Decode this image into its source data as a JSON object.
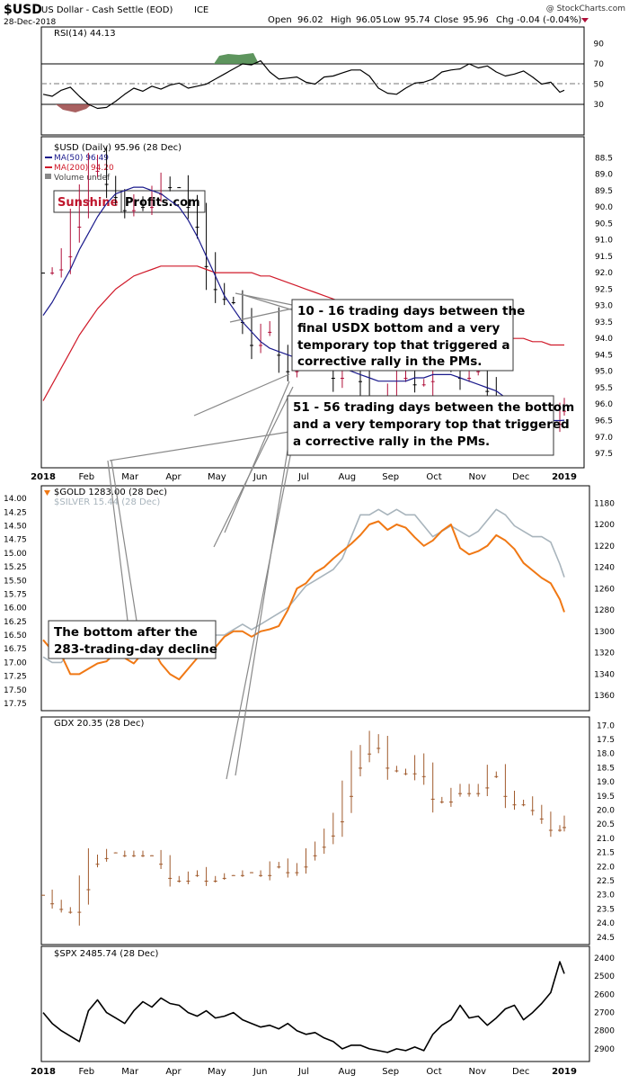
{
  "header": {
    "symbol": "$USD",
    "name": "US Dollar - Cash Settle (EOD)",
    "exchange": "ICE",
    "date": "28-Dec-2018",
    "open_label": "Open",
    "open": "96.02",
    "high_label": "High",
    "high": "96.05",
    "low_label": "Low",
    "low": "95.74",
    "close_label": "Close",
    "close": "95.96",
    "chg_label": "Chg",
    "chg": "-0.04 (-0.04%)",
    "watermark": "@ StockCharts.com"
  },
  "colors": {
    "usd_up": "#000000",
    "usd_down": "#b0103a",
    "ma50": "#1a1a8c",
    "ma200": "#d01a2a",
    "gold": "#f07814",
    "silver": "#a8b4bc",
    "gdx": "#a05a2c",
    "spx": "#000000",
    "rsi_over": "#4d8a4d",
    "rsi_under": "#a05050",
    "brand_red": "#c0182e"
  },
  "chart_data": [
    {
      "type": "line",
      "panel": "rsi",
      "title": "RSI(14) 44.13",
      "ylim": [
        20,
        100
      ],
      "y_ticks": [
        "90",
        "70",
        "50",
        "30"
      ],
      "x": [
        0,
        10,
        20,
        30,
        40,
        50,
        60,
        70,
        80,
        90,
        100,
        110,
        120,
        130,
        140,
        150,
        160,
        170,
        180,
        190,
        200,
        210,
        220,
        230,
        240,
        250,
        260,
        270,
        280,
        290,
        300,
        310,
        320,
        330,
        340,
        350,
        360,
        370,
        380,
        390,
        400,
        410,
        420,
        430,
        440,
        450,
        460,
        470,
        480,
        490,
        500,
        510,
        520,
        530,
        540,
        550,
        560,
        570,
        575
      ],
      "series": [
        {
          "name": "RSI(14)",
          "values": [
            40,
            38,
            44,
            47,
            38,
            30,
            26,
            27,
            33,
            40,
            46,
            43,
            48,
            45,
            49,
            51,
            46,
            48,
            50,
            55,
            60,
            65,
            70,
            69,
            73,
            62,
            55,
            56,
            57,
            52,
            50,
            57,
            58,
            61,
            64,
            64,
            58,
            46,
            41,
            40,
            46,
            51,
            52,
            55,
            62,
            64,
            65,
            70,
            66,
            68,
            62,
            58,
            60,
            63,
            57,
            50,
            52,
            42,
            44
          ]
        }
      ]
    },
    {
      "type": "candlestick",
      "panel": "usd",
      "title": "$USD (Daily) 95.96 (28 Dec)",
      "legend": [
        "MA(50) 96.49",
        "MA(200) 94.20",
        "Volume undef"
      ],
      "ylim": [
        88.0,
        97.8
      ],
      "y_ticks": [
        "97.5",
        "97.0",
        "96.5",
        "96.0",
        "95.5",
        "95.0",
        "94.5",
        "94.0",
        "93.5",
        "93.0",
        "92.5",
        "92.0",
        "91.5",
        "91.0",
        "90.5",
        "90.0",
        "89.5",
        "89.0",
        "88.5"
      ],
      "x_ticks": [
        "2018",
        "Feb",
        "Mar",
        "Apr",
        "May",
        "Jun",
        "Jul",
        "Aug",
        "Sep",
        "Oct",
        "Nov",
        "Dec",
        "2019"
      ],
      "x": [
        0,
        10,
        20,
        30,
        40,
        50,
        60,
        70,
        80,
        90,
        100,
        110,
        120,
        130,
        140,
        150,
        160,
        170,
        180,
        190,
        200,
        210,
        220,
        230,
        240,
        250,
        260,
        270,
        280,
        290,
        300,
        310,
        320,
        330,
        340,
        350,
        360,
        370,
        380,
        390,
        400,
        410,
        420,
        430,
        440,
        450,
        460,
        470,
        480,
        490,
        500,
        510,
        520,
        530,
        540,
        550,
        560,
        570,
        575
      ],
      "series": [
        {
          "name": "$USD",
          "values": [
            92.0,
            91.9,
            91.5,
            90.6,
            89.8,
            88.9,
            88.6,
            89.3,
            89.7,
            90.1,
            89.8,
            90.0,
            89.6,
            89.2,
            89.4,
            89.4,
            90.0,
            90.6,
            91.8,
            92.5,
            92.8,
            92.9,
            93.5,
            94.2,
            93.8,
            93.6,
            94.5,
            95.0,
            94.7,
            94.3,
            94.4,
            94.5,
            95.2,
            94.7,
            94.5,
            95.3,
            96.2,
            96.5,
            95.8,
            95.2,
            95.0,
            95.4,
            95.3,
            94.5,
            93.9,
            94.6,
            95.2,
            95.0,
            94.8,
            95.6,
            96.3,
            97.0,
            96.6,
            96.4,
            96.8,
            97.0,
            96.6,
            96.2,
            95.96
          ]
        },
        {
          "name": "MA(50)",
          "values": [
            93.3,
            92.9,
            92.4,
            91.9,
            91.3,
            90.8,
            90.3,
            89.9,
            89.6,
            89.5,
            89.4,
            89.4,
            89.5,
            89.6,
            89.8,
            90.0,
            90.4,
            90.9,
            91.5,
            92.1,
            92.7,
            93.1,
            93.5,
            93.8,
            94.1,
            94.3,
            94.4,
            94.5,
            94.6,
            94.6,
            94.6,
            94.7,
            94.8,
            94.9,
            95.0,
            95.1,
            95.2,
            95.3,
            95.3,
            95.3,
            95.3,
            95.2,
            95.2,
            95.1,
            95.1,
            95.1,
            95.2,
            95.3,
            95.4,
            95.5,
            95.6,
            95.8,
            96.0,
            96.2,
            96.3,
            96.4,
            96.5,
            96.5,
            96.49
          ]
        },
        {
          "name": "MA(200)",
          "values": [
            95.9,
            95.4,
            94.9,
            94.4,
            93.9,
            93.5,
            93.1,
            92.8,
            92.5,
            92.3,
            92.1,
            92.0,
            91.9,
            91.8,
            91.8,
            91.8,
            91.8,
            91.8,
            91.9,
            92.0,
            92.0,
            92.0,
            92.0,
            92.0,
            92.1,
            92.1,
            92.2,
            92.3,
            92.4,
            92.5,
            92.6,
            92.7,
            92.8,
            92.9,
            93.0,
            93.1,
            93.2,
            93.3,
            93.4,
            93.5,
            93.6,
            93.6,
            93.6,
            93.7,
            93.7,
            93.7,
            93.8,
            93.8,
            93.9,
            93.9,
            93.9,
            94.0,
            94.0,
            94.0,
            94.1,
            94.1,
            94.2,
            94.2,
            94.2
          ]
        }
      ]
    },
    {
      "type": "line",
      "panel": "gold_silver",
      "title": "$GOLD 1283.00 (28 Dec)",
      "legend": [
        "$GOLD 1283.00 (28 Dec)",
        "$SILVER 15.44 (28 Dec)"
      ],
      "ylim_gold": [
        1168,
        1370
      ],
      "ylim_silver": [
        13.85,
        17.8
      ],
      "y_ticks_right": [
        "1360",
        "1340",
        "1320",
        "1300",
        "1280",
        "1260",
        "1240",
        "1220",
        "1200",
        "1180"
      ],
      "y_ticks_left": [
        "17.75",
        "17.50",
        "17.25",
        "17.00",
        "16.75",
        "16.50",
        "16.25",
        "16.00",
        "15.75",
        "15.50",
        "15.25",
        "15.00",
        "14.75",
        "14.50",
        "14.25",
        "14.00"
      ],
      "x": [
        0,
        10,
        20,
        30,
        40,
        50,
        60,
        70,
        80,
        90,
        100,
        110,
        120,
        130,
        140,
        150,
        160,
        170,
        180,
        190,
        200,
        210,
        220,
        230,
        240,
        250,
        260,
        270,
        280,
        290,
        300,
        310,
        320,
        330,
        340,
        350,
        360,
        370,
        380,
        390,
        400,
        410,
        420,
        430,
        440,
        450,
        460,
        470,
        480,
        490,
        500,
        510,
        520,
        530,
        540,
        550,
        560,
        570,
        575
      ],
      "series": [
        {
          "name": "$GOLD",
          "values": [
            1308,
            1318,
            1322,
            1340,
            1340,
            1335,
            1330,
            1328,
            1320,
            1325,
            1330,
            1320,
            1315,
            1330,
            1340,
            1345,
            1335,
            1325,
            1320,
            1315,
            1305,
            1300,
            1300,
            1305,
            1300,
            1298,
            1295,
            1280,
            1260,
            1255,
            1245,
            1240,
            1232,
            1225,
            1218,
            1210,
            1200,
            1197,
            1205,
            1200,
            1203,
            1212,
            1220,
            1215,
            1206,
            1200,
            1222,
            1228,
            1225,
            1220,
            1210,
            1215,
            1223,
            1236,
            1243,
            1250,
            1255,
            1270,
            1282
          ]
        },
        {
          "name": "$SILVER",
          "values": [
            16.9,
            17.0,
            17.0,
            16.8,
            16.6,
            16.5,
            16.5,
            16.4,
            16.4,
            16.5,
            16.6,
            16.5,
            16.4,
            16.5,
            16.6,
            16.7,
            16.5,
            16.4,
            16.4,
            16.5,
            16.5,
            16.4,
            16.3,
            16.4,
            16.3,
            16.2,
            16.1,
            16.0,
            15.8,
            15.6,
            15.5,
            15.4,
            15.3,
            15.1,
            14.7,
            14.3,
            14.3,
            14.2,
            14.3,
            14.2,
            14.3,
            14.3,
            14.5,
            14.7,
            14.6,
            14.5,
            14.6,
            14.7,
            14.6,
            14.4,
            14.2,
            14.3,
            14.5,
            14.6,
            14.7,
            14.7,
            14.8,
            15.2,
            15.44
          ]
        }
      ]
    },
    {
      "type": "candlestick",
      "panel": "gdx",
      "title": "GDX 20.35 (28 Dec)",
      "ylim": [
        16.8,
        24.6
      ],
      "y_ticks": [
        "24.5",
        "24.0",
        "23.5",
        "23.0",
        "22.5",
        "22.0",
        "21.5",
        "21.0",
        "20.5",
        "20.0",
        "19.5",
        "19.0",
        "18.5",
        "18.0",
        "17.5",
        "17.0"
      ],
      "x": [
        0,
        10,
        20,
        30,
        40,
        50,
        60,
        70,
        80,
        90,
        100,
        110,
        120,
        130,
        140,
        150,
        160,
        170,
        180,
        190,
        200,
        210,
        220,
        230,
        240,
        250,
        260,
        270,
        280,
        290,
        300,
        310,
        320,
        330,
        340,
        350,
        360,
        370,
        380,
        390,
        400,
        410,
        420,
        430,
        440,
        450,
        460,
        470,
        480,
        490,
        500,
        510,
        520,
        530,
        540,
        550,
        560,
        570,
        575
      ],
      "series": [
        {
          "name": "GDX",
          "values": [
            23.0,
            23.3,
            23.5,
            23.6,
            22.8,
            21.9,
            21.7,
            21.5,
            21.5,
            21.6,
            21.5,
            21.6,
            21.6,
            21.9,
            22.4,
            22.5,
            22.3,
            22.2,
            22.5,
            22.4,
            22.3,
            22.3,
            22.2,
            22.2,
            22.3,
            22.0,
            21.9,
            22.2,
            22.0,
            21.6,
            21.3,
            20.9,
            20.4,
            19.5,
            18.5,
            18.0,
            17.5,
            17.8,
            18.5,
            18.6,
            18.7,
            18.3,
            18.8,
            19.6,
            19.7,
            19.4,
            19.2,
            19.4,
            19.2,
            18.7,
            18.8,
            19.5,
            19.8,
            19.7,
            20.0,
            20.3,
            20.7,
            20.6,
            20.35
          ]
        }
      ]
    },
    {
      "type": "line",
      "panel": "spx",
      "title": "$SPX 2485.74 (28 Dec)",
      "ylim": [
        2355,
        2960
      ],
      "y_ticks": [
        "2900",
        "2800",
        "2700",
        "2600",
        "2500",
        "2400"
      ],
      "x_ticks": [
        "2018",
        "Feb",
        "Mar",
        "Apr",
        "May",
        "Jun",
        "Jul",
        "Aug",
        "Sep",
        "Oct",
        "Nov",
        "Dec",
        "2019"
      ],
      "x": [
        0,
        10,
        20,
        30,
        40,
        50,
        60,
        70,
        80,
        90,
        100,
        110,
        120,
        130,
        140,
        150,
        160,
        170,
        180,
        190,
        200,
        210,
        220,
        230,
        240,
        250,
        260,
        270,
        280,
        290,
        300,
        310,
        320,
        330,
        340,
        350,
        360,
        370,
        380,
        390,
        400,
        410,
        420,
        430,
        440,
        450,
        460,
        470,
        480,
        490,
        500,
        510,
        520,
        530,
        540,
        550,
        560,
        570,
        575
      ],
      "series": [
        {
          "name": "$SPX",
          "values": [
            2700,
            2760,
            2800,
            2830,
            2860,
            2690,
            2630,
            2700,
            2730,
            2760,
            2690,
            2640,
            2670,
            2620,
            2650,
            2660,
            2700,
            2720,
            2690,
            2730,
            2720,
            2700,
            2740,
            2760,
            2780,
            2770,
            2790,
            2760,
            2800,
            2820,
            2810,
            2840,
            2860,
            2900,
            2880,
            2880,
            2900,
            2910,
            2920,
            2900,
            2910,
            2890,
            2910,
            2820,
            2770,
            2740,
            2660,
            2730,
            2720,
            2770,
            2730,
            2680,
            2660,
            2740,
            2700,
            2650,
            2590,
            2420,
            2485.74
          ]
        }
      ]
    }
  ],
  "annotations": {
    "box1_brand_a": "Sunshine",
    "box1_brand_b": "Profits.com",
    "box2": [
      "10 - 16 trading days between the",
      "final USDX bottom and a very",
      "temporary top that triggered a",
      "corrective rally in the PMs."
    ],
    "box3": [
      "51 - 56 trading days between the bottom",
      "and a very temporary top that triggered",
      "a corrective rally in the PMs."
    ],
    "box4": [
      "The bottom after the",
      "283-trading-day decline"
    ]
  }
}
